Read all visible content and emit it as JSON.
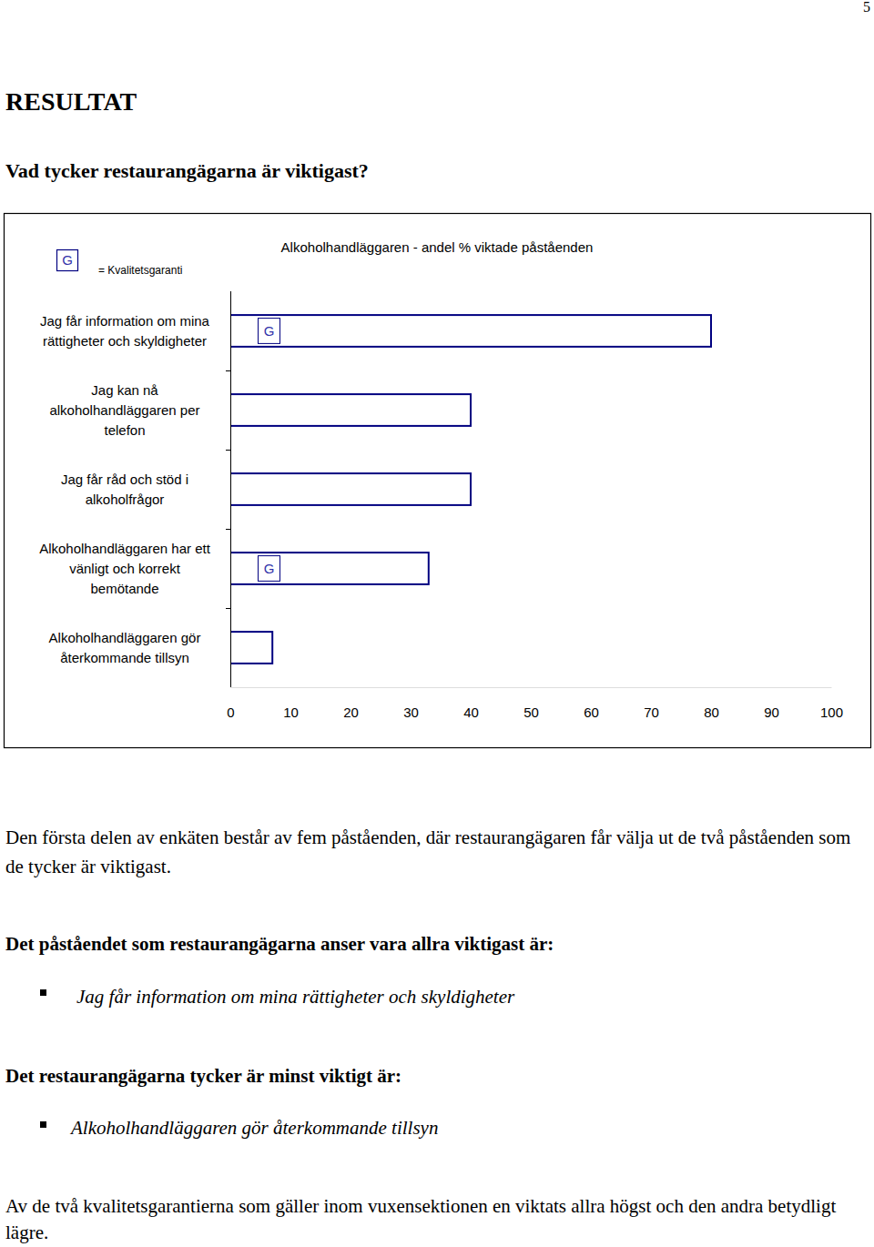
{
  "page_number": "5",
  "heading": "RESULTAT",
  "subheading": "Vad tycker restaurangägarna är viktigast?",
  "chart_data": {
    "type": "bar",
    "orientation": "horizontal",
    "title": "Alkoholhandläggaren - andel % viktade påståenden",
    "categories": [
      "Jag får information om mina rättigheter och skyldigheter",
      "Jag kan nå alkoholhandläggaren per telefon",
      "Jag får råd och stöd i alkoholfrågor",
      "Alkoholhandläggaren har ett vänligt och korrekt bemötande",
      "Alkoholhandläggaren gör återkommande tillsyn"
    ],
    "values": [
      80,
      40,
      40,
      33,
      7
    ],
    "guarantee": [
      true,
      false,
      false,
      true,
      false
    ],
    "guarantee_symbol": "G",
    "guarantee_label": "= Kvalitetsgaranti",
    "color": "#000080",
    "xlim": [
      0,
      100
    ],
    "xticks": [
      0,
      10,
      20,
      30,
      40,
      50,
      60,
      70,
      80,
      90,
      100
    ]
  },
  "intro": "Den första delen av enkäten består av fem påståenden, där restaurangägaren får välja ut de två påståenden som de tycker är viktigast.",
  "most_important_heading": "Det påståendet som restaurangägarna anser vara allra viktigast är:",
  "most_important": "Jag får information om mina rättigheter och skyldigheter",
  "least_important_heading": "Det restaurangägarna tycker är minst viktigt är:",
  "least_important": "Alkoholhandläggaren gör återkommande tillsyn",
  "conclusion": "Av de två kvalitetsgarantierna som gäller inom vuxensektionen en viktats allra högst och den andra betydligt lägre."
}
